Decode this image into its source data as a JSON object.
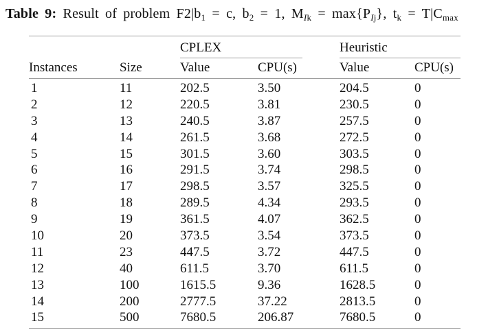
{
  "caption": {
    "segments": [
      {
        "text": "Table 9:",
        "style": "bold"
      },
      {
        "text": " Result of problem F2|b",
        "style": "normal"
      },
      {
        "text": "1",
        "style": "sub"
      },
      {
        "text": " = c, b",
        "style": "normal"
      },
      {
        "text": "2",
        "style": "sub"
      },
      {
        "text": " = 1, M",
        "style": "normal"
      },
      {
        "text": "I",
        "style": "subi"
      },
      {
        "text": "k",
        "style": "sub"
      },
      {
        "text": " = max{P",
        "style": "normal"
      },
      {
        "text": "I",
        "style": "subi"
      },
      {
        "text": "j",
        "style": "sub"
      },
      {
        "text": "}, t",
        "style": "normal"
      },
      {
        "text": "k",
        "style": "sub"
      },
      {
        "text": " = T|C",
        "style": "normal"
      },
      {
        "text": "max",
        "style": "sub"
      }
    ]
  },
  "table": {
    "groups": [
      {
        "label": "CPLEX"
      },
      {
        "label": "Heuristic"
      }
    ],
    "columns": [
      "Instances",
      "Size",
      "Value",
      "CPU(s)",
      "Value",
      "CPU(s)"
    ],
    "rows": [
      [
        "1",
        "11",
        "202.5",
        "3.50",
        "204.5",
        "0"
      ],
      [
        "2",
        "12",
        "220.5",
        "3.81",
        "230.5",
        "0"
      ],
      [
        "3",
        "13",
        "240.5",
        "3.87",
        "257.5",
        "0"
      ],
      [
        "4",
        "14",
        "261.5",
        "3.68",
        "272.5",
        "0"
      ],
      [
        "5",
        "15",
        "301.5",
        "3.60",
        "303.5",
        "0"
      ],
      [
        "6",
        "16",
        "291.5",
        "3.74",
        "298.5",
        "0"
      ],
      [
        "7",
        "17",
        "298.5",
        "3.57",
        "325.5",
        "0"
      ],
      [
        "8",
        "18",
        "289.5",
        "4.34",
        "293.5",
        "0"
      ],
      [
        "9",
        "19",
        "361.5",
        "4.07",
        "362.5",
        "0"
      ],
      [
        "10",
        "20",
        "373.5",
        "3.54",
        "373.5",
        "0"
      ],
      [
        "11",
        "23",
        "447.5",
        "3.72",
        "447.5",
        "0"
      ],
      [
        "12",
        "40",
        "611.5",
        "3.70",
        "611.5",
        "0"
      ],
      [
        "13",
        "100",
        "1615.5",
        "9.36",
        "1628.5",
        "0"
      ],
      [
        "14",
        "200",
        "2777.5",
        "37.22",
        "2813.5",
        "0"
      ],
      [
        "15",
        "500",
        "7680.5",
        "206.87",
        "7680.5",
        "0"
      ]
    ]
  },
  "colors": {
    "background": "#ffffff",
    "text": "#121212",
    "rule": "#9c9c9c"
  }
}
